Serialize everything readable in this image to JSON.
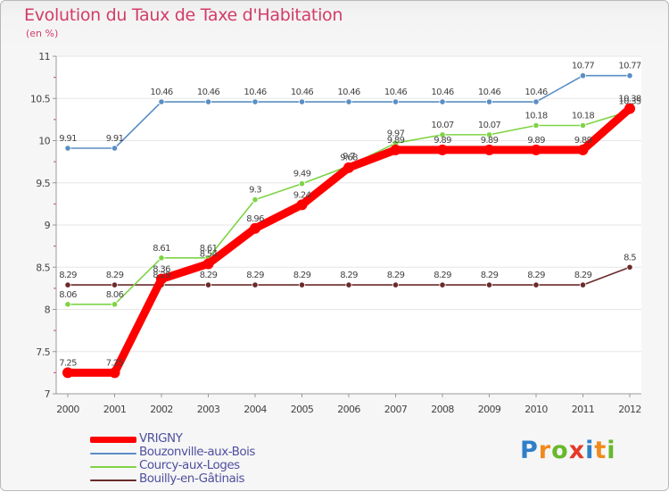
{
  "title": "Evolution du Taux de Taxe d'Habitation",
  "subtitle": "(en %)",
  "chart_data": {
    "type": "line",
    "title": "Evolution du Taux de Taxe d'Habitation",
    "ylabel": "(en %)",
    "xlabel": "",
    "ylim": [
      7,
      11
    ],
    "y_ticks": [
      "7",
      "7.5",
      "8",
      "8.5",
      "9",
      "9.5",
      "10",
      "10.5",
      "11"
    ],
    "categories": [
      "2000",
      "2001",
      "2002",
      "2003",
      "2004",
      "2005",
      "2006",
      "2007",
      "2008",
      "2009",
      "2010",
      "2011",
      "2012"
    ],
    "series": [
      {
        "name": "Bouilly-en-Gâtinais",
        "color": "#6b2a2a",
        "values": [
          8.29,
          8.29,
          8.29,
          8.29,
          8.29,
          8.29,
          8.29,
          8.29,
          8.29,
          8.29,
          8.29,
          8.29,
          8.5
        ],
        "labels": [
          "8.29",
          "8.29",
          "8.29",
          "8.29",
          "8.29",
          "8.29",
          "8.29",
          "8.29",
          "8.29",
          "8.29",
          "8.29",
          "8.29",
          "8.5"
        ]
      },
      {
        "name": "Bouzonville-aux-Bois",
        "color": "#5a8ec4",
        "values": [
          9.91,
          9.91,
          10.46,
          10.46,
          10.46,
          10.46,
          10.46,
          10.46,
          10.46,
          10.46,
          10.46,
          10.77,
          10.77
        ],
        "labels": [
          "9.91",
          "9.91",
          "10.46",
          "10.46",
          "10.46",
          "10.46",
          "10.46",
          "10.46",
          "10.46",
          "10.46",
          "10.46",
          "10.77",
          "10.77"
        ]
      },
      {
        "name": "Courcy-aux-Loges",
        "color": "#7ed346",
        "values": [
          8.06,
          8.06,
          8.61,
          8.61,
          9.3,
          9.49,
          9.7,
          9.97,
          10.07,
          10.07,
          10.18,
          10.18,
          10.35
        ],
        "labels": [
          "8.06",
          "8.06",
          "8.61",
          "8.61",
          "9.3",
          "9.49",
          "9.7",
          "9.97",
          "10.07",
          "10.07",
          "10.18",
          "10.18",
          "10.35"
        ]
      },
      {
        "name": "VRIGNY",
        "color": "#ff0000",
        "values": [
          7.25,
          7.25,
          8.36,
          8.54,
          8.96,
          9.24,
          9.68,
          9.89,
          9.89,
          9.89,
          9.89,
          9.89,
          10.38
        ],
        "labels": [
          "7.25",
          "7.25",
          "8.36",
          "8.54",
          "8.96",
          "9.24",
          "9.68",
          "9.89",
          "9.89",
          "9.89",
          "9.89",
          "9.89",
          "10.38"
        ]
      }
    ]
  },
  "legend": {
    "items": [
      {
        "label": "VRIGNY",
        "color": "#ff0000"
      },
      {
        "label": "Bouzonville-aux-Bois",
        "color": "#5a8ec4"
      },
      {
        "label": "Courcy-aux-Loges",
        "color": "#7ed346"
      },
      {
        "label": "Bouilly-en-Gâtinais",
        "color": "#6b2a2a"
      }
    ]
  },
  "logo": {
    "letters": [
      "P",
      "r",
      "o",
      "x",
      "i",
      "t",
      "i"
    ],
    "colors": [
      "#2f7fc8",
      "#f08a1c",
      "#68b82c",
      "#e53a2a",
      "#2f7fc8",
      "#f08a1c",
      "#68b82c"
    ]
  }
}
